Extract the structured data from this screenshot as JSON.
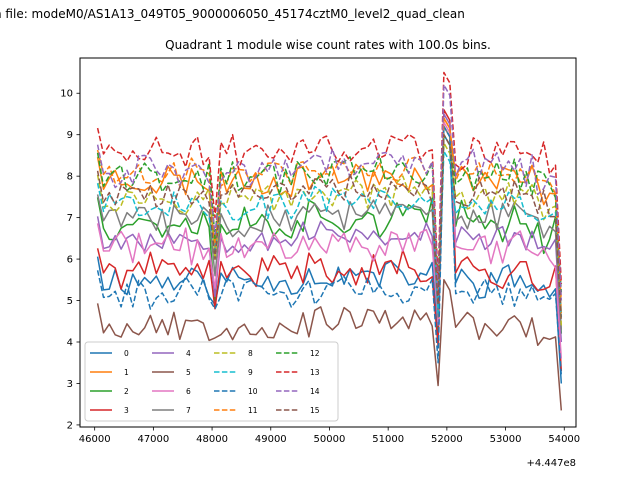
{
  "figure": {
    "suptitle": "n file: modeM0/AS1A13_049T05_9000006050_45174cztM0_level2_quad_clean",
    "title": "Quadrant 1 module wise count rates with 100.0s bins.",
    "offset_label": "+4.447e8"
  },
  "chart_data": {
    "type": "line",
    "title": "Quadrant 1 module wise count rates with 100.0s bins.",
    "xlabel": "",
    "ylabel": "",
    "x_offset": "+4.447e8",
    "xlim": [
      45750,
      54200
    ],
    "ylim": [
      1.95,
      10.85
    ],
    "xticks": [
      46000,
      47000,
      48000,
      49000,
      50000,
      51000,
      52000,
      53000,
      54000
    ],
    "xtick_labels": [
      "46000",
      "47000",
      "48000",
      "49000",
      "50000",
      "51000",
      "52000",
      "53000",
      "54000"
    ],
    "yticks": [
      2,
      3,
      4,
      5,
      6,
      7,
      8,
      9,
      10
    ],
    "ytick_labels": [
      "2",
      "3",
      "4",
      "5",
      "6",
      "7",
      "8",
      "9",
      "10"
    ],
    "x_start": 46050,
    "x_step": 100,
    "grid": false,
    "legend_position": "lower-left",
    "legend_columns": 4,
    "series": [
      {
        "name": "0",
        "color": "#1f77b4",
        "dashed": false,
        "base": 5.5,
        "dip48": 4.9,
        "n52": 4.1,
        "p52": 9.0,
        "end": 3.0,
        "amp": 0.35,
        "seed": 11
      },
      {
        "name": "1",
        "color": "#ff7f0e",
        "dashed": false,
        "base": 7.9,
        "dip48": 6.2,
        "n52": 5.0,
        "p52": 9.4,
        "end": 4.7,
        "amp": 0.35,
        "seed": 23
      },
      {
        "name": "2",
        "color": "#2ca02c",
        "dashed": false,
        "base": 6.9,
        "dip48": 5.0,
        "n52": 4.3,
        "p52": 9.2,
        "end": 4.2,
        "amp": 0.4,
        "seed": 37
      },
      {
        "name": "3",
        "color": "#d62728",
        "dashed": false,
        "base": 5.7,
        "dip48": 4.8,
        "n52": 3.9,
        "p52": 9.6,
        "end": 3.3,
        "amp": 0.35,
        "seed": 41
      },
      {
        "name": "4",
        "color": "#9467bd",
        "dashed": false,
        "base": 6.5,
        "dip48": 5.1,
        "n52": 4.4,
        "p52": 9.5,
        "end": 4.0,
        "amp": 0.3,
        "seed": 53
      },
      {
        "name": "5",
        "color": "#8c564b",
        "dashed": false,
        "base": 4.4,
        "dip48": 4.1,
        "n52": 2.95,
        "p52": 5.5,
        "end": 2.35,
        "amp": 0.3,
        "seed": 67
      },
      {
        "name": "6",
        "color": "#e377c2",
        "dashed": false,
        "base": 6.3,
        "dip48": 5.3,
        "n52": 4.5,
        "p52": 9.3,
        "end": 3.6,
        "amp": 0.35,
        "seed": 71
      },
      {
        "name": "7",
        "color": "#7f7f7f",
        "dashed": false,
        "base": 7.0,
        "dip48": 5.6,
        "n52": 4.6,
        "p52": 9.2,
        "end": 4.3,
        "amp": 0.35,
        "seed": 83
      },
      {
        "name": "8",
        "color": "#bcbd22",
        "dashed": true,
        "base": 7.5,
        "dip48": 6.0,
        "n52": 4.8,
        "p52": 8.8,
        "end": 4.4,
        "amp": 0.3,
        "seed": 97
      },
      {
        "name": "9",
        "color": "#17becf",
        "dashed": true,
        "base": 7.3,
        "dip48": 6.2,
        "n52": 4.7,
        "p52": 8.6,
        "end": 4.6,
        "amp": 0.3,
        "seed": 101
      },
      {
        "name": "10",
        "color": "#1f77b4",
        "dashed": true,
        "base": 5.2,
        "dip48": 4.8,
        "n52": 3.5,
        "p52": 9.2,
        "end": 3.2,
        "amp": 0.3,
        "seed": 113
      },
      {
        "name": "11",
        "color": "#ff7f0e",
        "dashed": true,
        "base": 8.1,
        "dip48": 6.4,
        "n52": 5.2,
        "p52": 9.4,
        "end": 5.0,
        "amp": 0.3,
        "seed": 127
      },
      {
        "name": "12",
        "color": "#2ca02c",
        "dashed": true,
        "base": 8.0,
        "dip48": 6.5,
        "n52": 5.3,
        "p52": 9.0,
        "end": 5.2,
        "amp": 0.35,
        "seed": 131
      },
      {
        "name": "13",
        "color": "#d62728",
        "dashed": true,
        "base": 8.6,
        "dip48": 7.0,
        "n52": 5.5,
        "p52": 10.5,
        "end": 5.4,
        "amp": 0.35,
        "seed": 149
      },
      {
        "name": "14",
        "color": "#9467bd",
        "dashed": true,
        "base": 8.2,
        "dip48": 6.6,
        "n52": 5.1,
        "p52": 10.2,
        "end": 5.0,
        "amp": 0.35,
        "seed": 157
      },
      {
        "name": "15",
        "color": "#8c564b",
        "dashed": true,
        "base": 7.6,
        "dip48": 6.0,
        "n52": 4.9,
        "p52": 9.0,
        "end": 4.5,
        "amp": 0.3,
        "seed": 163
      }
    ]
  }
}
